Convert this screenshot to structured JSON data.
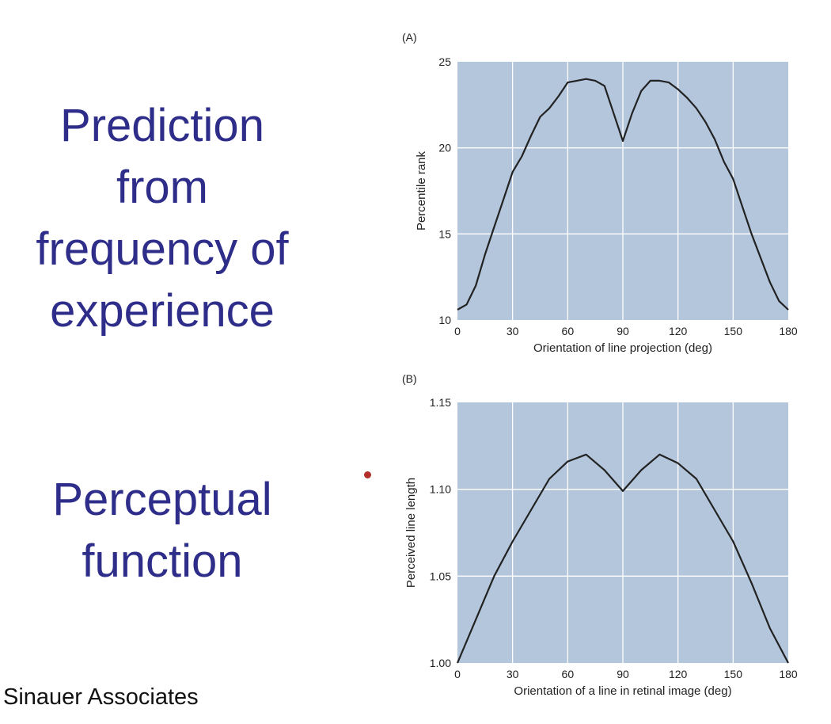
{
  "slide": {
    "heading_lines": [
      "Prediction",
      "from",
      "frequency of",
      "experience"
    ],
    "perceptual_lines": [
      "Perceptual",
      "function"
    ],
    "credit": "Sinauer Associates",
    "text_color": "#2e2e8a"
  },
  "chart_data": [
    {
      "type": "line",
      "panel_label": "(A)",
      "xlabel": "Orientation of line projection (deg)",
      "ylabel": "Percentile rank",
      "xlim": [
        0,
        180
      ],
      "ylim": [
        10,
        25
      ],
      "xticks": [
        0,
        30,
        60,
        90,
        120,
        150,
        180
      ],
      "yticks": [
        10,
        15,
        20,
        25
      ],
      "ytick_labels": [
        "10",
        "15",
        "20",
        "25"
      ],
      "grid": true,
      "plot_background": "#b4c6dc",
      "line_color": "#222222",
      "x": [
        0,
        5,
        10,
        15,
        20,
        25,
        30,
        35,
        40,
        45,
        50,
        55,
        60,
        65,
        70,
        75,
        80,
        85,
        90,
        95,
        100,
        105,
        110,
        115,
        120,
        125,
        130,
        135,
        140,
        145,
        150,
        155,
        160,
        165,
        170,
        175,
        180
      ],
      "y": [
        10.6,
        10.9,
        12.0,
        13.8,
        15.4,
        17.0,
        18.6,
        19.5,
        20.7,
        21.8,
        22.3,
        23.0,
        23.8,
        23.9,
        24.0,
        23.9,
        23.6,
        22.0,
        20.4,
        22.0,
        23.3,
        23.9,
        23.9,
        23.8,
        23.4,
        22.9,
        22.3,
        21.5,
        20.5,
        19.2,
        18.2,
        16.6,
        15.0,
        13.6,
        12.2,
        11.1,
        10.6
      ]
    },
    {
      "type": "line",
      "panel_label": "(B)",
      "xlabel": "Orientation of a line in retinal image (deg)",
      "ylabel": "Perceived line length",
      "xlim": [
        0,
        180
      ],
      "ylim": [
        1.0,
        1.15
      ],
      "xticks": [
        0,
        30,
        60,
        90,
        120,
        150,
        180
      ],
      "yticks": [
        1.0,
        1.05,
        1.1,
        1.15
      ],
      "ytick_labels": [
        "1.00",
        "1.05",
        "1.10",
        "1.15"
      ],
      "grid": true,
      "plot_background": "#b4c6dc",
      "line_color": "#222222",
      "x": [
        0,
        10,
        20,
        30,
        40,
        50,
        60,
        70,
        80,
        90,
        100,
        110,
        120,
        130,
        140,
        150,
        160,
        170,
        180
      ],
      "y": [
        1.0,
        1.025,
        1.05,
        1.07,
        1.088,
        1.106,
        1.116,
        1.12,
        1.111,
        1.099,
        1.111,
        1.12,
        1.115,
        1.106,
        1.088,
        1.07,
        1.046,
        1.02,
        1.0
      ]
    }
  ]
}
